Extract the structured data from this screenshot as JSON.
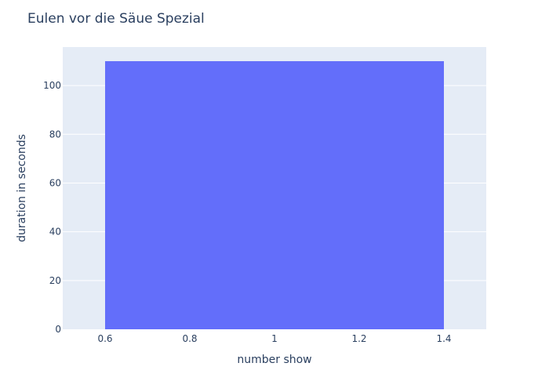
{
  "chart_data": {
    "type": "bar",
    "title": "Eulen vor die Säue Spezial",
    "xlabel": "number show",
    "ylabel": "duration in seconds",
    "x": [
      1
    ],
    "bar_width": 0.8,
    "values": [
      110
    ],
    "xlim": [
      0.5,
      1.5
    ],
    "ylim": [
      0,
      115.8
    ],
    "xticks": [
      0.6,
      0.8,
      1,
      1.2,
      1.4
    ],
    "xtick_labels": [
      "0.6",
      "0.8",
      "1",
      "1.2",
      "1.4"
    ],
    "yticks": [
      0,
      20,
      40,
      60,
      80,
      100
    ],
    "ytick_labels": [
      "0",
      "20",
      "40",
      "60",
      "80",
      "100"
    ],
    "grid": true,
    "legend": "none",
    "colors": {
      "plot_background": "#e5ecf6",
      "bar": "#636efa",
      "grid": "#ffffff",
      "text": "#2a3f5f"
    }
  }
}
